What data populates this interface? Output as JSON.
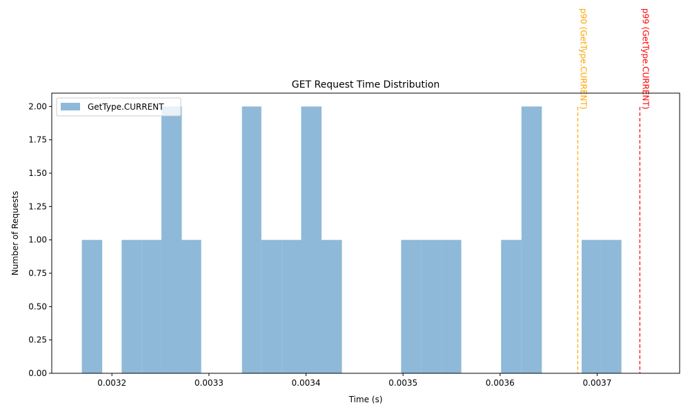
{
  "chart_data": {
    "type": "bar",
    "title": "GET Request Time Distribution",
    "xlabel": "Time (s)",
    "ylabel": "Number of Requests",
    "xlim": [
      0.003138,
      0.003785
    ],
    "ylim": [
      0,
      2.1
    ],
    "grid": false,
    "legend_position": "upper-left",
    "x_ticks": [
      0.0032,
      0.0033,
      0.0034,
      0.0035,
      0.0036,
      0.0037
    ],
    "x_tick_labels": [
      "0.0032",
      "0.0033",
      "0.0034",
      "0.0035",
      "0.0036",
      "0.0037"
    ],
    "y_ticks": [
      0,
      0.25,
      0.5,
      0.75,
      1.0,
      1.25,
      1.5,
      1.75,
      2.0
    ],
    "y_tick_labels": [
      "0.00",
      "0.25",
      "0.50",
      "0.75",
      "1.00",
      "1.25",
      "1.50",
      "1.75",
      "2.00"
    ],
    "series": [
      {
        "name": "GetType.CURRENT",
        "color": "#8fb9d9",
        "bin_edges": [
          0.003169,
          0.00319,
          0.00321,
          0.003231,
          0.003251,
          0.003272,
          0.003292,
          0.003313,
          0.003334,
          0.003354,
          0.003375,
          0.003395,
          0.003416,
          0.003437,
          0.003457,
          0.003478,
          0.003498,
          0.003519,
          0.00354,
          0.00356,
          0.003581,
          0.003601,
          0.003622,
          0.003643,
          0.003663,
          0.003684,
          0.003704,
          0.003725,
          0.003746
        ],
        "values": [
          1,
          0,
          1,
          1,
          2,
          1,
          0,
          0,
          2,
          1,
          1,
          2,
          1,
          0,
          0,
          0,
          1,
          1,
          1,
          0,
          0,
          1,
          2,
          0,
          0,
          1,
          1,
          0
        ]
      }
    ],
    "markers": [
      {
        "label": "p90 (GetType.CURRENT)",
        "value": 0.00368,
        "color": "#ffa500"
      },
      {
        "label": "p99 (GetType.CURRENT)",
        "value": 0.003744,
        "color": "#ff0000"
      }
    ]
  }
}
